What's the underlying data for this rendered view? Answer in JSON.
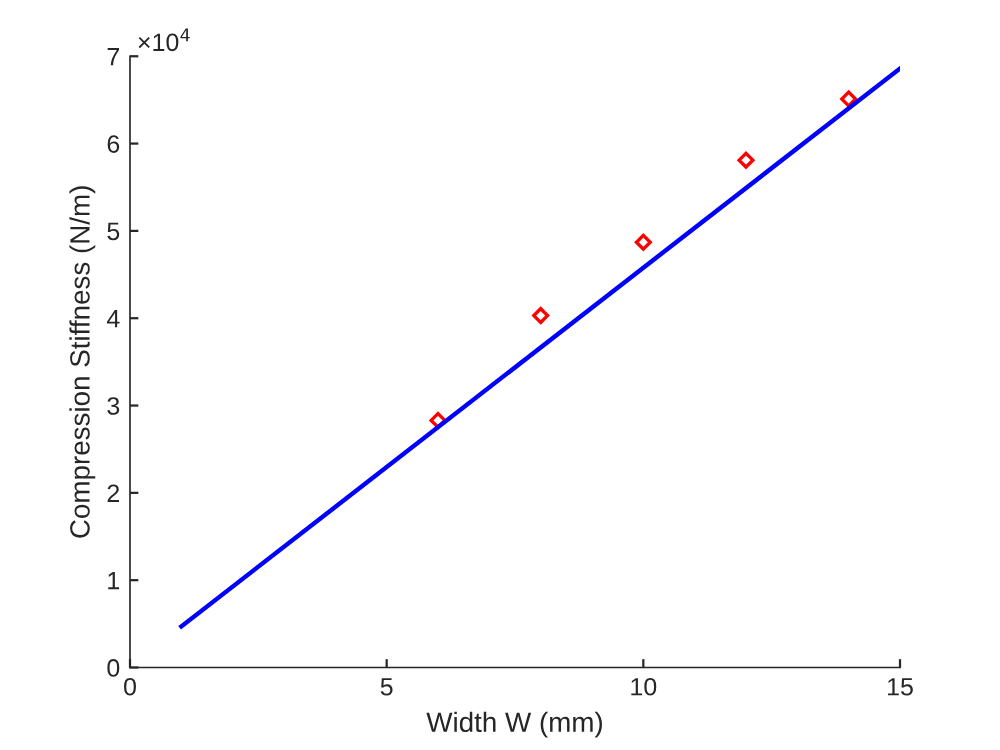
{
  "chart_data": {
    "type": "scatter",
    "xlabel": "Width W (mm)",
    "ylabel": "Compression Stiffness (N/m)",
    "annotations": [
      "×10$^{4}$"
    ],
    "xlim": [
      0,
      15
    ],
    "xticks": [
      0,
      5,
      10,
      15
    ],
    "ylim": [
      0,
      7
    ],
    "yticks": [
      0,
      1,
      2,
      3,
      4,
      5,
      6,
      7
    ],
    "grid": false,
    "legend": false,
    "series": [
      {
        "color": "#ff0000",
        "marker": "diamond",
        "x": [
          6,
          8,
          10,
          12,
          14
        ],
        "values": [
          2.83,
          4.03,
          4.87,
          5.81,
          6.51
        ]
      },
      {
        "type": "line",
        "color": "#0000ff",
        "marker": "none",
        "line_style": "solid",
        "x": [
          1,
          15
        ],
        "values": [
          0.47,
          6.86
        ]
      }
    ]
  }
}
